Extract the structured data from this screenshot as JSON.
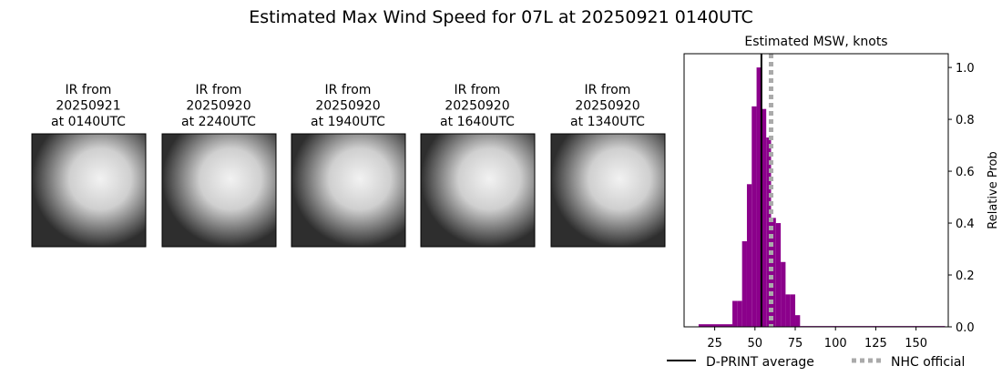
{
  "title": "Estimated Max Wind Speed for 07L at 20250921 0140UTC",
  "images": [
    {
      "label": [
        "IR from",
        "20250921",
        "at 0140UTC"
      ]
    },
    {
      "label": [
        "IR from",
        "20250920",
        "at 2240UTC"
      ]
    },
    {
      "label": [
        "IR from",
        "20250920",
        "at 1940UTC"
      ]
    },
    {
      "label": [
        "IR from",
        "20250920",
        "at 1640UTC"
      ]
    },
    {
      "label": [
        "IR from",
        "20250920",
        "at 1340UTC"
      ]
    }
  ],
  "chart_data": {
    "type": "histogram",
    "title": "Estimated MSW, knots",
    "ylabel": "Relative Prob",
    "y_axis_side": "right",
    "bins": [
      15,
      36,
      39,
      42,
      45,
      48,
      51,
      54,
      57,
      60,
      63,
      66,
      69,
      72,
      75,
      78,
      168
    ],
    "values": [
      0.01,
      0.1,
      0.1,
      0.33,
      0.55,
      0.85,
      1.0,
      0.84,
      0.73,
      0.42,
      0.4,
      0.25,
      0.125,
      0.125,
      0.045,
      0.003
    ],
    "color": "#8b008b",
    "xlim": [
      6,
      170
    ],
    "xticks": [
      25,
      50,
      75,
      100,
      125,
      150
    ],
    "ylim": [
      0,
      1.053
    ],
    "yticks": [
      {
        "value": 0,
        "label": "0.0"
      },
      0.2,
      0.4,
      0.6,
      0.8,
      {
        "value": 1,
        "label": "1.0"
      }
    ],
    "vlines": [
      {
        "name": "D-PRINT average",
        "value": 54,
        "color": "#000000",
        "dashed": false
      },
      {
        "name": "NHC official",
        "value": 60,
        "color": "#aaaaaa",
        "dashed": true
      }
    ]
  }
}
